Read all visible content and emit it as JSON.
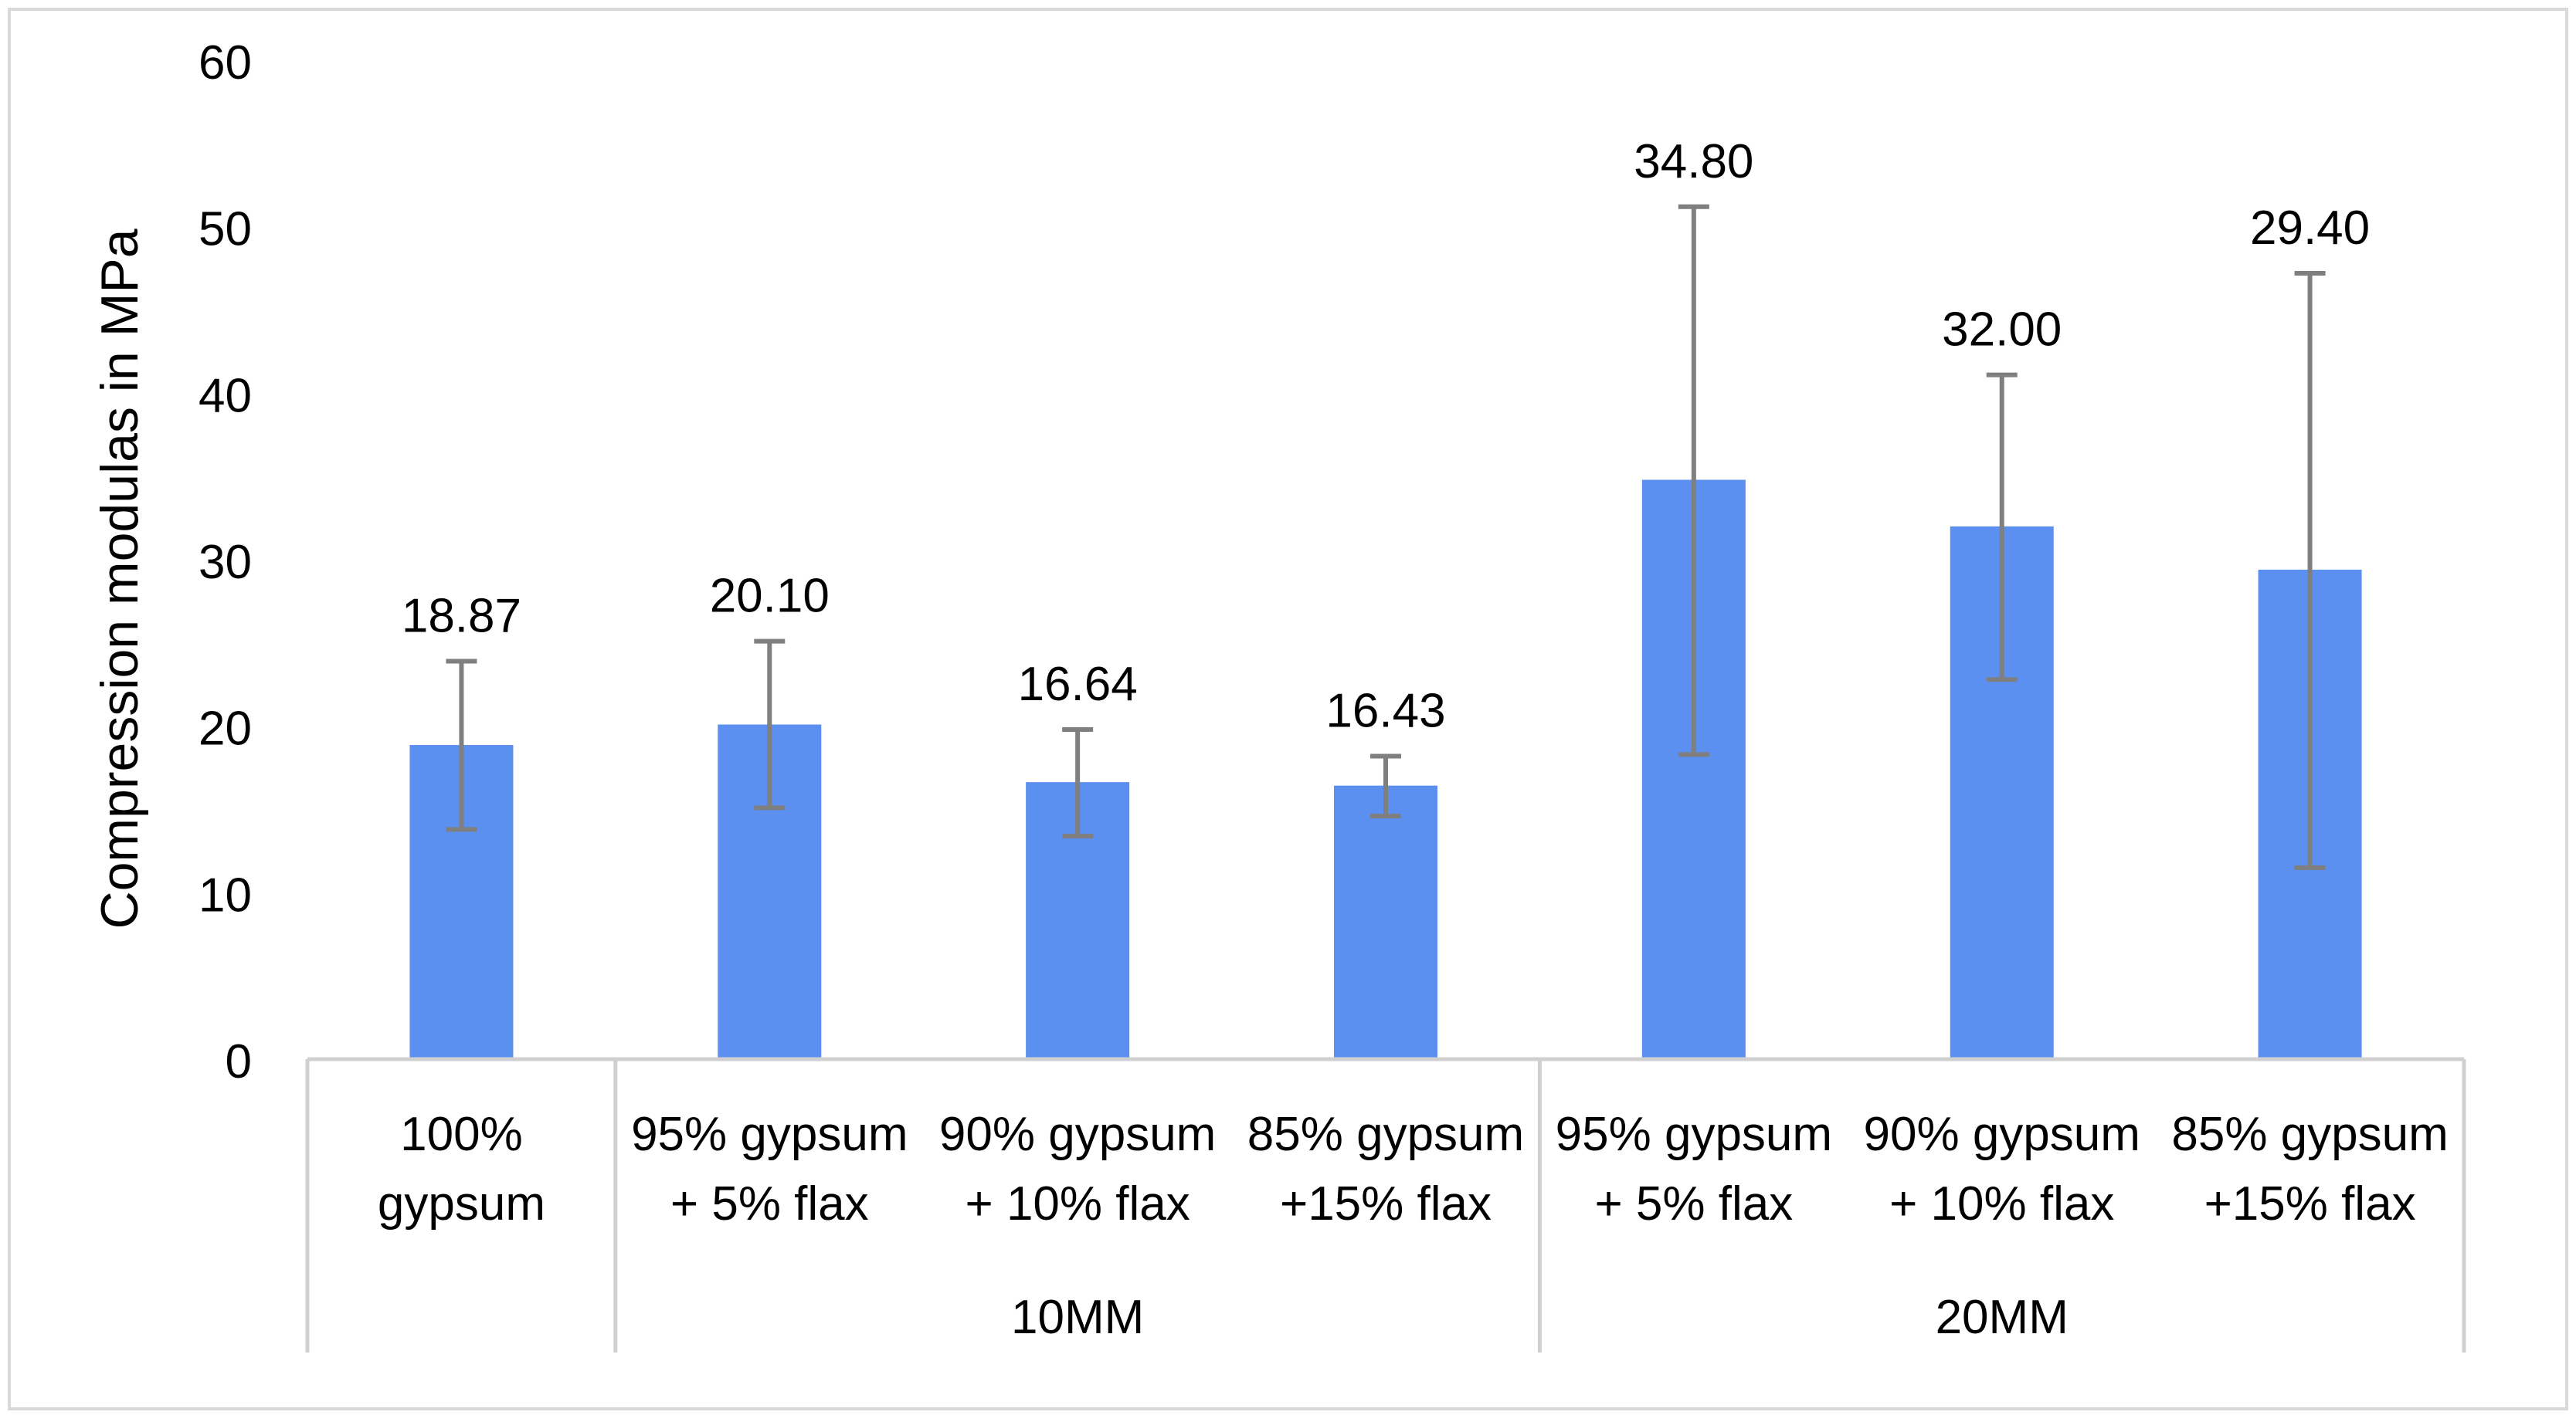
{
  "chart_data": {
    "type": "bar",
    "title": "",
    "xlabel": "",
    "ylabel": "Compression modulas in MPa",
    "ylim": [
      0,
      60
    ],
    "yticks": [
      0,
      10,
      20,
      30,
      40,
      50,
      60
    ],
    "grid": false,
    "categories": [
      [
        "100%",
        "gypsum"
      ],
      [
        "95% gypsum",
        "+ 5% flax"
      ],
      [
        "90% gypsum",
        "+ 10% flax"
      ],
      [
        "85% gypsum",
        "+15% flax"
      ],
      [
        "95% gypsum",
        "+ 5% flax"
      ],
      [
        "90% gypsum",
        "+ 10% flax"
      ],
      [
        "85% gypsum",
        "+15% flax"
      ]
    ],
    "groups": [
      {
        "label": "",
        "start": 0,
        "end": 0
      },
      {
        "label": "10MM",
        "start": 1,
        "end": 3
      },
      {
        "label": "20MM",
        "start": 4,
        "end": 6
      }
    ],
    "values": [
      18.87,
      20.1,
      16.64,
      16.43,
      34.8,
      32.0,
      29.4
    ],
    "value_labels": [
      "18.87",
      "20.10",
      "16.64",
      "16.43",
      "34.80",
      "32.00",
      "29.40"
    ],
    "error_low": [
      13.8,
      15.1,
      13.4,
      14.6,
      18.3,
      22.8,
      11.5
    ],
    "error_high": [
      23.9,
      25.1,
      19.8,
      18.2,
      51.2,
      41.1,
      47.2
    ],
    "colors": {
      "bar": "#5B8FF0",
      "error": "#7F7F7F",
      "axis": "#D0D0D0",
      "border": "#D9D9D9"
    }
  }
}
